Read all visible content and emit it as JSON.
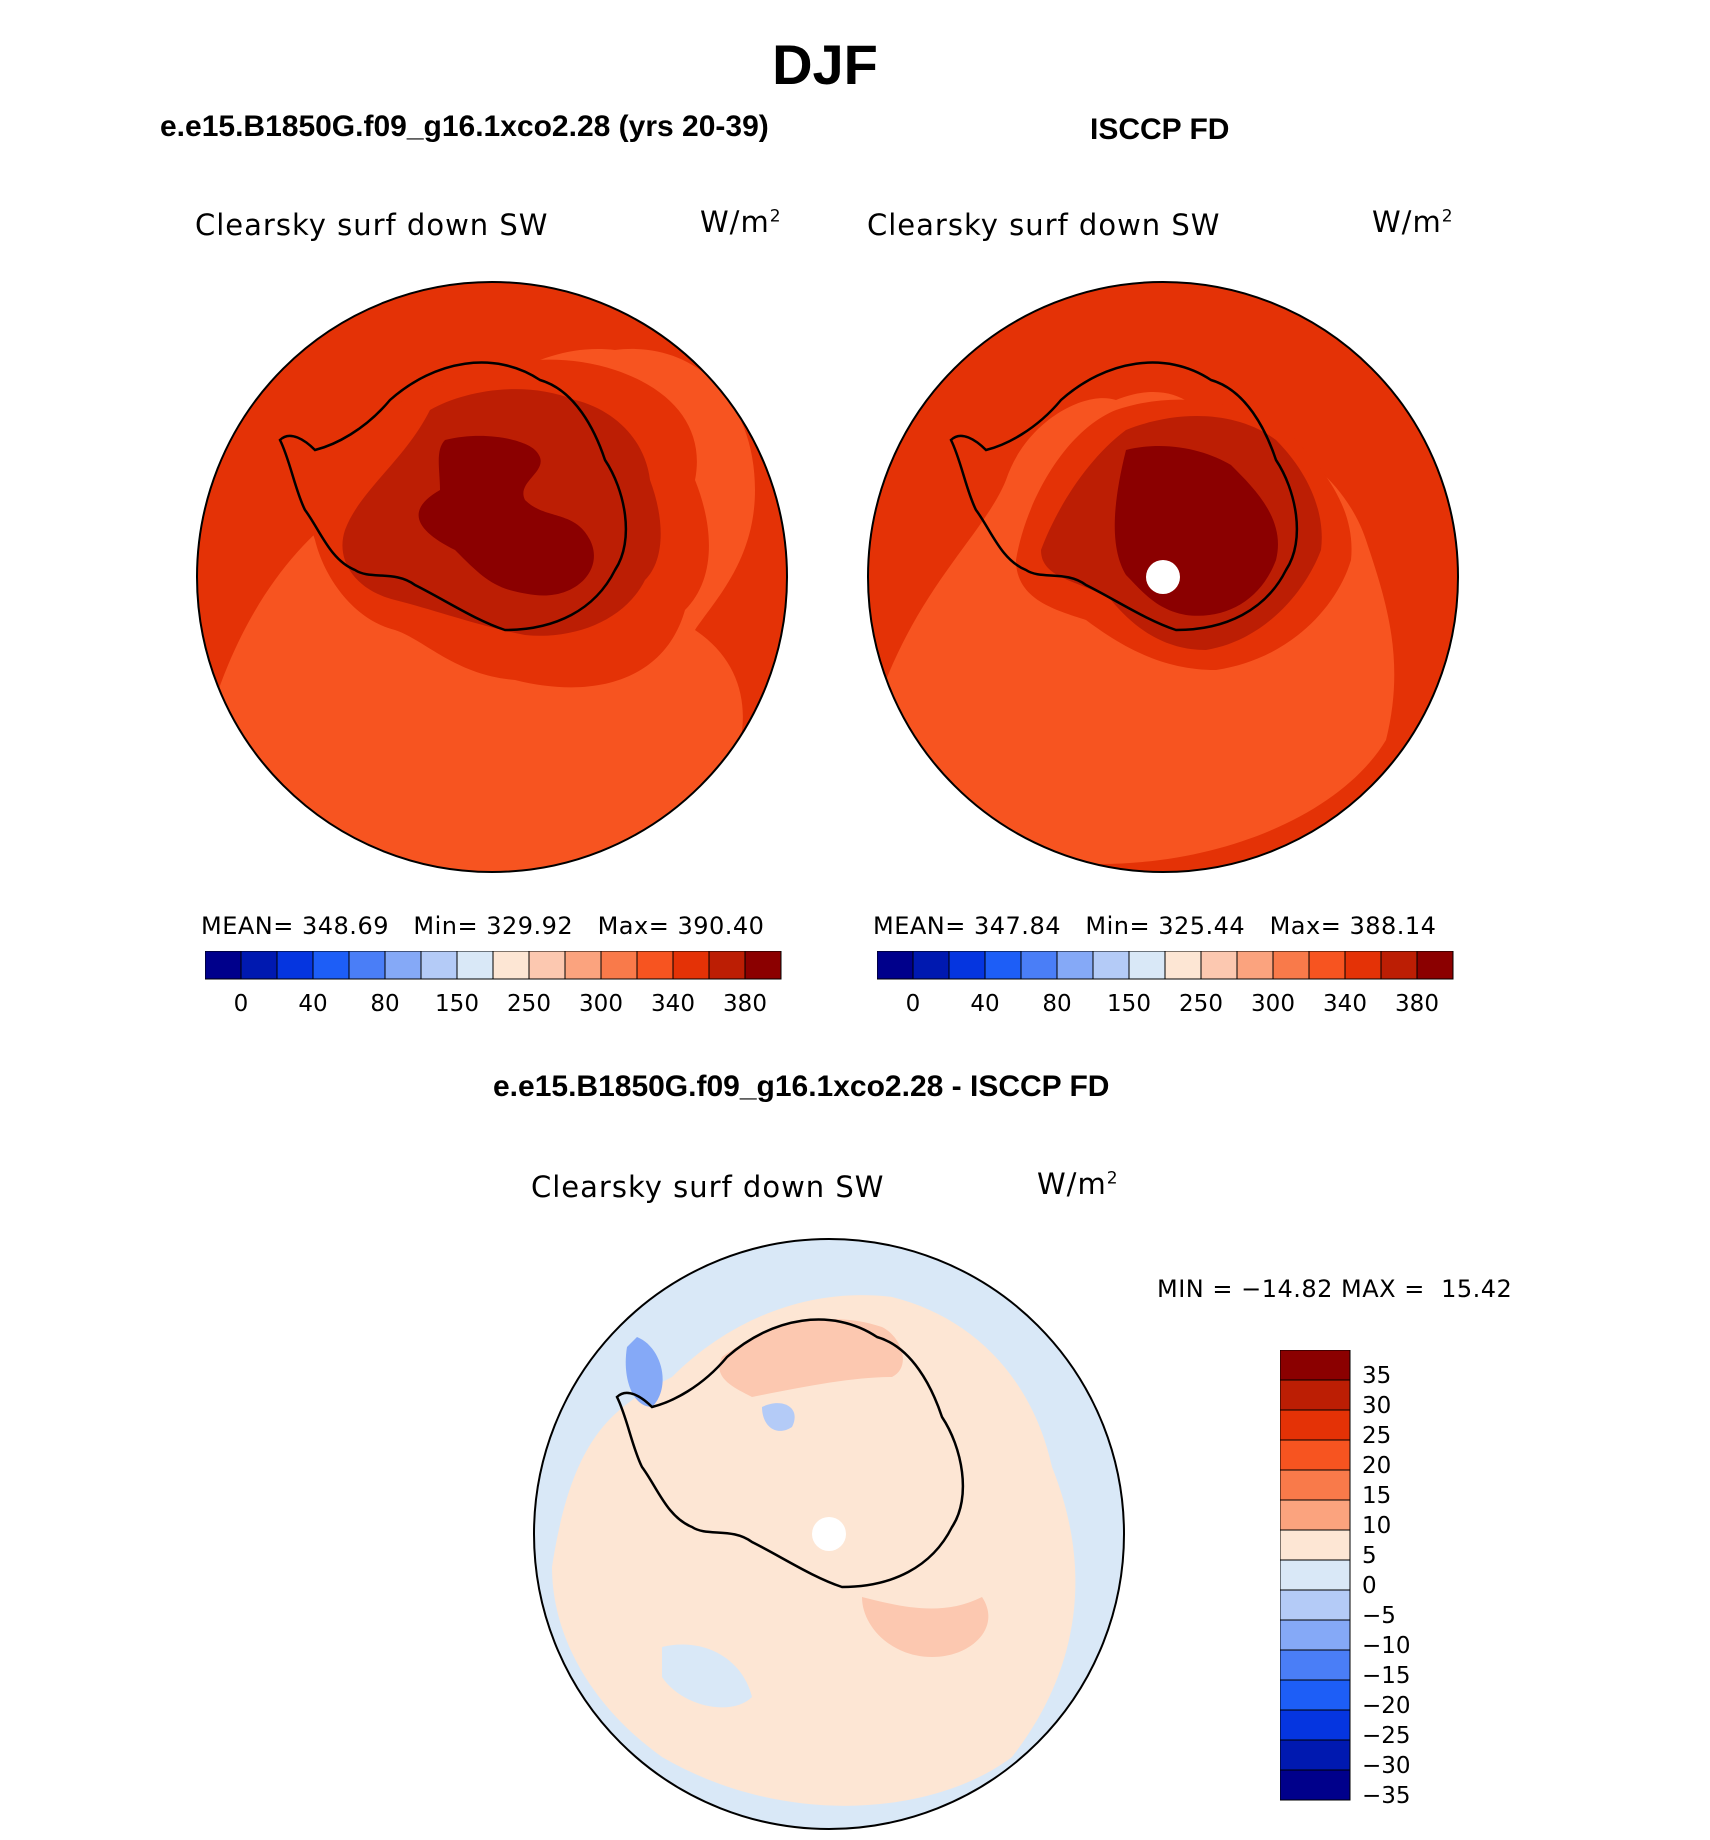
{
  "figure": {
    "title": "DJF",
    "left_case": "e.e15.B1850G.f09_g16.1xco2.28 (yrs 20-39)",
    "right_case": "ISCCP FD",
    "diff_case": "e.e15.B1850G.f09_g16.1xco2.28 - ISCCP FD"
  },
  "panels": {
    "left": {
      "variable": "Clearsky surf down SW",
      "units": "W/m",
      "units_exp": "2",
      "mean_label": "MEAN=",
      "mean": "348.69",
      "min_label": "Min=",
      "min": "329.92",
      "max_label": "Max=",
      "max": "390.40"
    },
    "right": {
      "variable": "Clearsky surf down SW",
      "units": "W/m",
      "units_exp": "2",
      "mean_label": "MEAN=",
      "mean": "347.84",
      "min_label": "Min=",
      "min": "325.44",
      "max_label": "Max=",
      "max": "388.14"
    },
    "diff": {
      "variable": "Clearsky surf down SW",
      "units": "W/m",
      "units_exp": "2",
      "stats": "MIN = −14.82 MAX =  15.42"
    }
  },
  "colorbar_abs": {
    "colors": [
      "#00008b",
      "#0019b0",
      "#0535e0",
      "#1d5ef7",
      "#4a7ef7",
      "#85a9f7",
      "#b4cbf7",
      "#d9e8f7",
      "#fde6d4",
      "#fcc8b0",
      "#fba37e",
      "#f97a4a",
      "#f75420",
      "#e43206",
      "#bc1e04",
      "#8b0000"
    ],
    "labels": [
      "0",
      "40",
      "80",
      "150",
      "250",
      "300",
      "340",
      "380"
    ]
  },
  "colorbar_diff": {
    "colors": [
      "#8b0000",
      "#bc1e04",
      "#e43206",
      "#f75420",
      "#f97a4a",
      "#fba37e",
      "#fde6d4",
      "#d9e8f7",
      "#b4cbf7",
      "#85a9f7",
      "#4a7ef7",
      "#1d5ef7",
      "#0535e0",
      "#0019b0",
      "#00008b"
    ],
    "labels": [
      "35",
      "30",
      "25",
      "20",
      "15",
      "10",
      "5",
      "0",
      "−5",
      "−10",
      "−15",
      "−20",
      "−25",
      "−30",
      "−35"
    ]
  },
  "map_colors": {
    "ocean_outer": "#e43206",
    "ocean_mid": "#f75420",
    "coast_band": "#e43206",
    "ice_sheet": "#bc1e04",
    "plateau": "#8b0000",
    "diff_ocean": "#d9e8f7",
    "diff_pos_small": "#fde6d4",
    "diff_pos_mid": "#fcc8b0",
    "diff_neg_small": "#b4cbf7",
    "diff_neg_mid": "#85a9f7",
    "missing": "#ffffff"
  }
}
